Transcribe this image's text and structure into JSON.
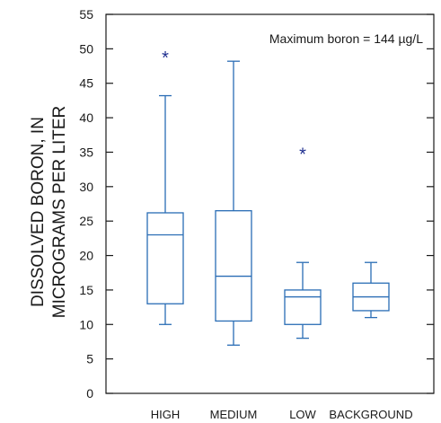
{
  "chart_data": {
    "type": "box",
    "annotation": "Maximum boron = 144 µg/L",
    "ylabel_line1": "DISSOLVED BORON, IN",
    "ylabel_line2": "MICROGRAMS PER LITER",
    "ylim": [
      0,
      55
    ],
    "yticks": [
      0,
      5,
      10,
      15,
      20,
      25,
      30,
      35,
      40,
      45,
      50,
      55
    ],
    "grid": false,
    "colors": {
      "box": "#2a6db5",
      "outlier": "#1f2f8f",
      "axis": "#1a1a1a"
    },
    "categories": [
      "HIGH",
      "MEDIUM",
      "LOW",
      "BACKGROUND"
    ],
    "boxes": [
      {
        "category": "HIGH",
        "whisker_low": 10,
        "q1": 13,
        "median": 23,
        "q3": 26.2,
        "whisker_high": 43.2,
        "outliers": [
          49
        ]
      },
      {
        "category": "MEDIUM",
        "whisker_low": 7,
        "q1": 10.5,
        "median": 17,
        "q3": 26.5,
        "whisker_high": 48.2,
        "outliers": []
      },
      {
        "category": "LOW",
        "whisker_low": 8,
        "q1": 10,
        "median": 14,
        "q3": 15,
        "whisker_high": 19,
        "outliers": [
          35
        ]
      },
      {
        "category": "BACKGROUND",
        "whisker_low": 11,
        "q1": 12,
        "median": 14,
        "q3": 16,
        "whisker_high": 19,
        "outliers": []
      }
    ]
  }
}
